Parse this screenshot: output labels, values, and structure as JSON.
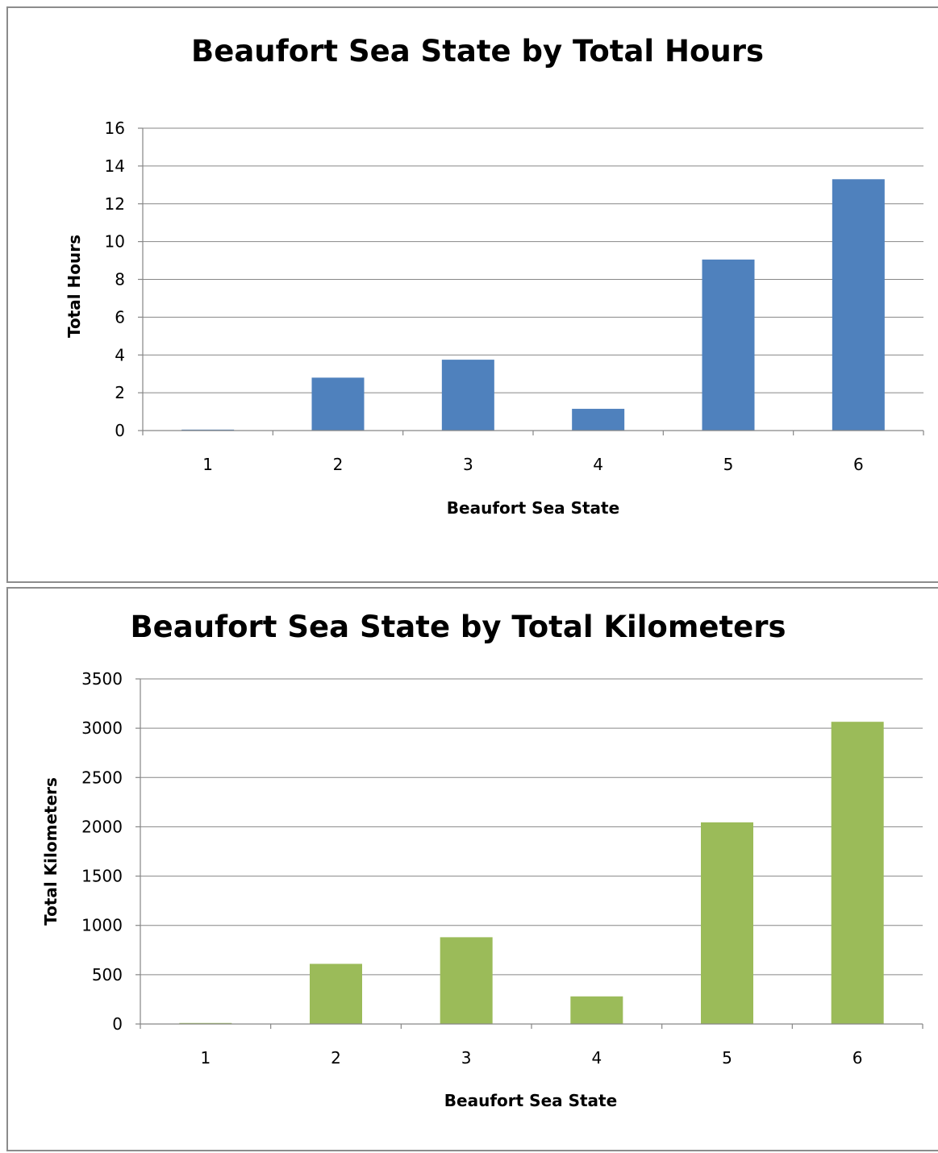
{
  "colors": {
    "hours_bar": "#4f81bd",
    "km_bar": "#9bbb59"
  },
  "chart_data": [
    {
      "type": "bar",
      "title": "Beaufort Sea State by Total Hours",
      "xlabel": "Beaufort Sea State",
      "ylabel": "Total Hours",
      "categories": [
        "1",
        "2",
        "3",
        "4",
        "5",
        "6"
      ],
      "values": [
        0.05,
        2.8,
        3.75,
        1.15,
        9.05,
        13.3
      ],
      "ylim": [
        0,
        16
      ],
      "yticks": [
        "0",
        "2",
        "4",
        "6",
        "8",
        "10",
        "12",
        "14",
        "16"
      ],
      "grid": true,
      "legend": "none"
    },
    {
      "type": "bar",
      "title": "Beaufort Sea State by Total Kilometers",
      "xlabel": "Beaufort Sea State",
      "ylabel": "Total Kilometers",
      "categories": [
        "1",
        "2",
        "3",
        "4",
        "5",
        "6"
      ],
      "values": [
        10,
        610,
        880,
        280,
        2045,
        3065
      ],
      "ylim": [
        0,
        3500
      ],
      "yticks": [
        "0",
        "500",
        "1000",
        "1500",
        "2000",
        "2500",
        "3000",
        "3500"
      ],
      "grid": true,
      "legend": "none"
    }
  ]
}
